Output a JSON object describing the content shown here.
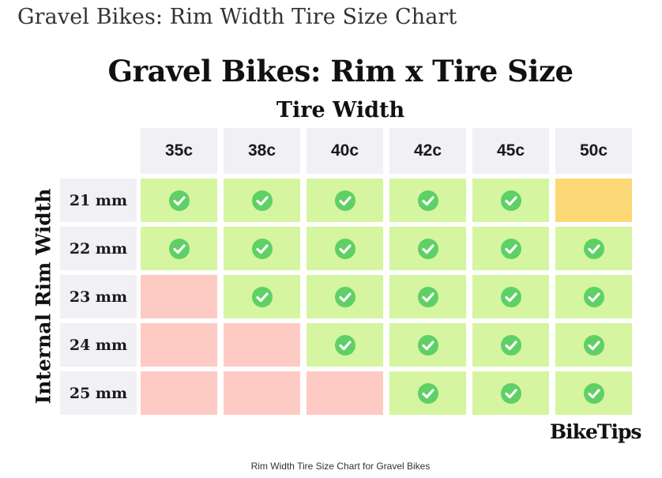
{
  "page": {
    "heading": "Gravel Bikes: Rim Width Tire Size Chart",
    "caption": "Rim Width Tire Size Chart for Gravel Bikes",
    "brand": "BikeTips"
  },
  "chart_data": {
    "type": "table",
    "title": "Gravel Bikes: Rim x Tire Size",
    "column_axis_label": "Tire Width",
    "row_axis_label": "Internal Rim Width",
    "columns": [
      "35c",
      "38c",
      "40c",
      "42c",
      "45c",
      "50c"
    ],
    "rows": [
      "21 mm",
      "22 mm",
      "23 mm",
      "24 mm",
      "25 mm"
    ],
    "status_colors": {
      "compatible": "#d5f5a0",
      "borderline": "#fdd876",
      "incompatible": "#fdcbc4"
    },
    "check_color": "#5fd066",
    "check_icon": "check-circle-icon",
    "cells": [
      [
        "compatible",
        "compatible",
        "compatible",
        "compatible",
        "compatible",
        "borderline"
      ],
      [
        "compatible",
        "compatible",
        "compatible",
        "compatible",
        "compatible",
        "compatible"
      ],
      [
        "incompatible",
        "compatible",
        "compatible",
        "compatible",
        "compatible",
        "compatible"
      ],
      [
        "incompatible",
        "incompatible",
        "compatible",
        "compatible",
        "compatible",
        "compatible"
      ],
      [
        "incompatible",
        "incompatible",
        "incompatible",
        "compatible",
        "compatible",
        "compatible"
      ]
    ]
  }
}
